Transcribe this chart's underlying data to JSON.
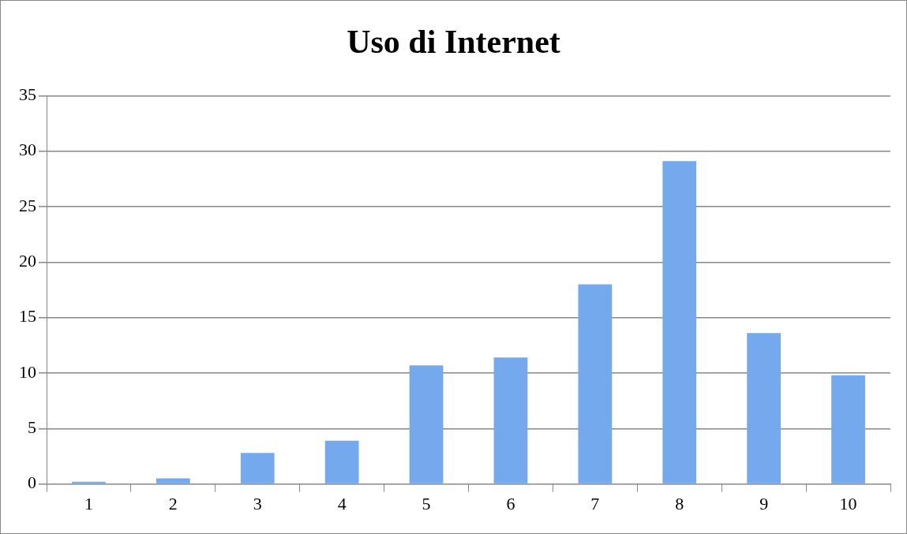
{
  "chart_data": {
    "type": "bar",
    "title": "Uso di Internet",
    "categories": [
      "1",
      "2",
      "3",
      "4",
      "5",
      "6",
      "7",
      "8",
      "9",
      "10"
    ],
    "values": [
      0.2,
      0.5,
      2.8,
      3.9,
      10.7,
      11.4,
      18.0,
      29.1,
      13.6,
      9.8
    ],
    "color": "#74a9ee",
    "ylim": [
      0,
      35
    ],
    "yticks": [
      0,
      5,
      10,
      15,
      20,
      25,
      30,
      35
    ],
    "grid": "y",
    "legend": false
  }
}
